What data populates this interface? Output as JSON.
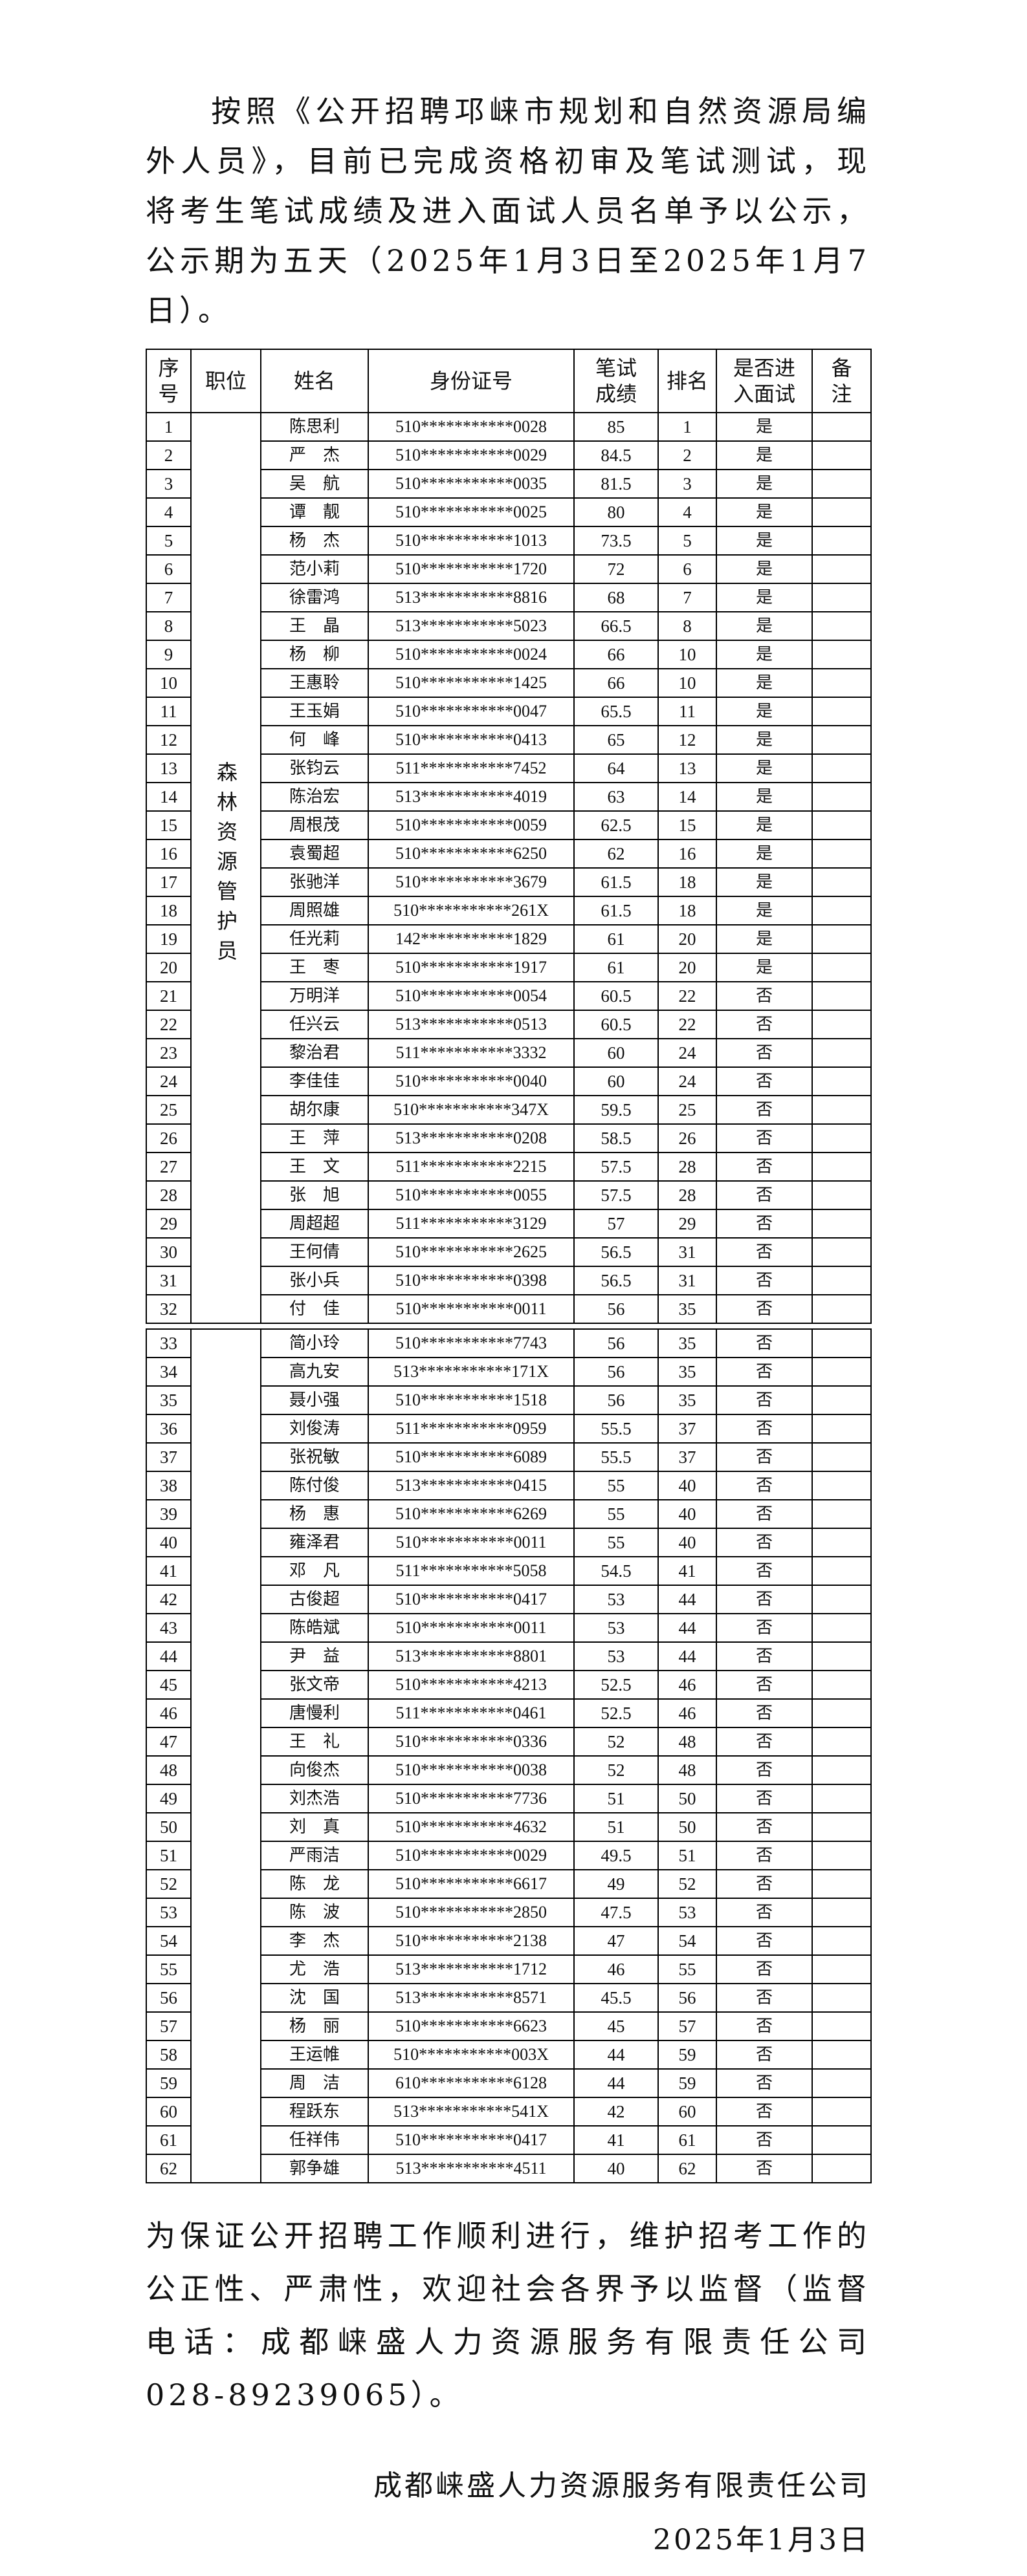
{
  "intro": "按照《公开招聘邛崃市规划和自然资源局编外人员》，目前已完成资格初审及笔试测试，现将考生笔试成绩及进入面试人员名单予以公示，公示期为五天（2025年1月3日至2025年1月7日）。",
  "table": {
    "headers": [
      "序号",
      "职位",
      "姓名",
      "身份证号",
      "笔试成绩",
      "排名",
      "是否进入面试",
      "备注"
    ],
    "position": "森林资源管护员",
    "rows": [
      [
        "1",
        "陈思利",
        "510***********0028",
        "85",
        "1",
        "是"
      ],
      [
        "2",
        "严　杰",
        "510***********0029",
        "84.5",
        "2",
        "是"
      ],
      [
        "3",
        "吴　航",
        "510***********0035",
        "81.5",
        "3",
        "是"
      ],
      [
        "4",
        "谭　靓",
        "510***********0025",
        "80",
        "4",
        "是"
      ],
      [
        "5",
        "杨　杰",
        "510***********1013",
        "73.5",
        "5",
        "是"
      ],
      [
        "6",
        "范小莉",
        "510***********1720",
        "72",
        "6",
        "是"
      ],
      [
        "7",
        "徐雷鸿",
        "513***********8816",
        "68",
        "7",
        "是"
      ],
      [
        "8",
        "王　晶",
        "513***********5023",
        "66.5",
        "8",
        "是"
      ],
      [
        "9",
        "杨　柳",
        "510***********0024",
        "66",
        "10",
        "是"
      ],
      [
        "10",
        "王惠聆",
        "510***********1425",
        "66",
        "10",
        "是"
      ],
      [
        "11",
        "王玉娟",
        "510***********0047",
        "65.5",
        "11",
        "是"
      ],
      [
        "12",
        "何　峰",
        "510***********0413",
        "65",
        "12",
        "是"
      ],
      [
        "13",
        "张钧云",
        "511***********7452",
        "64",
        "13",
        "是"
      ],
      [
        "14",
        "陈治宏",
        "513***********4019",
        "63",
        "14",
        "是"
      ],
      [
        "15",
        "周根茂",
        "510***********0059",
        "62.5",
        "15",
        "是"
      ],
      [
        "16",
        "袁蜀超",
        "510***********6250",
        "62",
        "16",
        "是"
      ],
      [
        "17",
        "张驰洋",
        "510***********3679",
        "61.5",
        "18",
        "是"
      ],
      [
        "18",
        "周照雄",
        "510***********261X",
        "61.5",
        "18",
        "是"
      ],
      [
        "19",
        "任光莉",
        "142***********1829",
        "61",
        "20",
        "是"
      ],
      [
        "20",
        "王　枣",
        "510***********1917",
        "61",
        "20",
        "是"
      ],
      [
        "21",
        "万明洋",
        "510***********0054",
        "60.5",
        "22",
        "否"
      ],
      [
        "22",
        "任兴云",
        "513***********0513",
        "60.5",
        "22",
        "否"
      ],
      [
        "23",
        "黎治君",
        "511***********3332",
        "60",
        "24",
        "否"
      ],
      [
        "24",
        "李佳佳",
        "510***********0040",
        "60",
        "24",
        "否"
      ],
      [
        "25",
        "胡尔康",
        "510***********347X",
        "59.5",
        "25",
        "否"
      ],
      [
        "26",
        "王　萍",
        "513***********0208",
        "58.5",
        "26",
        "否"
      ],
      [
        "27",
        "王　文",
        "511***********2215",
        "57.5",
        "28",
        "否"
      ],
      [
        "28",
        "张　旭",
        "510***********0055",
        "57.5",
        "28",
        "否"
      ],
      [
        "29",
        "周超超",
        "511***********3129",
        "57",
        "29",
        "否"
      ],
      [
        "30",
        "王何倩",
        "510***********2625",
        "56.5",
        "31",
        "否"
      ],
      [
        "31",
        "张小兵",
        "510***********0398",
        "56.5",
        "31",
        "否"
      ],
      [
        "32",
        "付　佳",
        "510***********0011",
        "56",
        "35",
        "否"
      ],
      [
        "33",
        "简小玲",
        "510***********7743",
        "56",
        "35",
        "否"
      ],
      [
        "34",
        "高九安",
        "513***********171X",
        "56",
        "35",
        "否"
      ],
      [
        "35",
        "聂小强",
        "510***********1518",
        "56",
        "35",
        "否"
      ],
      [
        "36",
        "刘俊涛",
        "511***********0959",
        "55.5",
        "37",
        "否"
      ],
      [
        "37",
        "张祝敏",
        "510***********6089",
        "55.5",
        "37",
        "否"
      ],
      [
        "38",
        "陈付俊",
        "513***********0415",
        "55",
        "40",
        "否"
      ],
      [
        "39",
        "杨　惠",
        "510***********6269",
        "55",
        "40",
        "否"
      ],
      [
        "40",
        "雍泽君",
        "510***********0011",
        "55",
        "40",
        "否"
      ],
      [
        "41",
        "邓　凡",
        "511***********5058",
        "54.5",
        "41",
        "否"
      ],
      [
        "42",
        "古俊超",
        "510***********0417",
        "53",
        "44",
        "否"
      ],
      [
        "43",
        "陈皓斌",
        "510***********0011",
        "53",
        "44",
        "否"
      ],
      [
        "44",
        "尹　益",
        "513***********8801",
        "53",
        "44",
        "否"
      ],
      [
        "45",
        "张文帝",
        "510***********4213",
        "52.5",
        "46",
        "否"
      ],
      [
        "46",
        "唐慢利",
        "511***********0461",
        "52.5",
        "46",
        "否"
      ],
      [
        "47",
        "王　礼",
        "510***********0336",
        "52",
        "48",
        "否"
      ],
      [
        "48",
        "向俊杰",
        "510***********0038",
        "52",
        "48",
        "否"
      ],
      [
        "49",
        "刘杰浩",
        "510***********7736",
        "51",
        "50",
        "否"
      ],
      [
        "50",
        "刘　真",
        "510***********4632",
        "51",
        "50",
        "否"
      ],
      [
        "51",
        "严雨洁",
        "510***********0029",
        "49.5",
        "51",
        "否"
      ],
      [
        "52",
        "陈　龙",
        "510***********6617",
        "49",
        "52",
        "否"
      ],
      [
        "53",
        "陈　波",
        "510***********2850",
        "47.5",
        "53",
        "否"
      ],
      [
        "54",
        "李　杰",
        "510***********2138",
        "47",
        "54",
        "否"
      ],
      [
        "55",
        "尤　浩",
        "513***********1712",
        "46",
        "55",
        "否"
      ],
      [
        "56",
        "沈　国",
        "513***********8571",
        "45.5",
        "56",
        "否"
      ],
      [
        "57",
        "杨　丽",
        "510***********6623",
        "45",
        "57",
        "否"
      ],
      [
        "58",
        "王运帷",
        "510***********003X",
        "44",
        "59",
        "否"
      ],
      [
        "59",
        "周　洁",
        "610***********6128",
        "44",
        "59",
        "否"
      ],
      [
        "60",
        "程跃东",
        "513***********541X",
        "42",
        "60",
        "否"
      ],
      [
        "61",
        "任祥伟",
        "510***********0417",
        "41",
        "61",
        "否"
      ],
      [
        "62",
        "郭争雄",
        "513***********4511",
        "40",
        "62",
        "否"
      ]
    ]
  },
  "notice": "为保证公开招聘工作顺利进行，维护招考工作的公正性、严肃性，欢迎社会各界予以监督（监督电话：成都崃盛人力资源服务有限责任公司 028-89239065）。",
  "signature": {
    "org": "成都崃盛人力资源服务有限责任公司",
    "date": "2025年1月3日"
  }
}
